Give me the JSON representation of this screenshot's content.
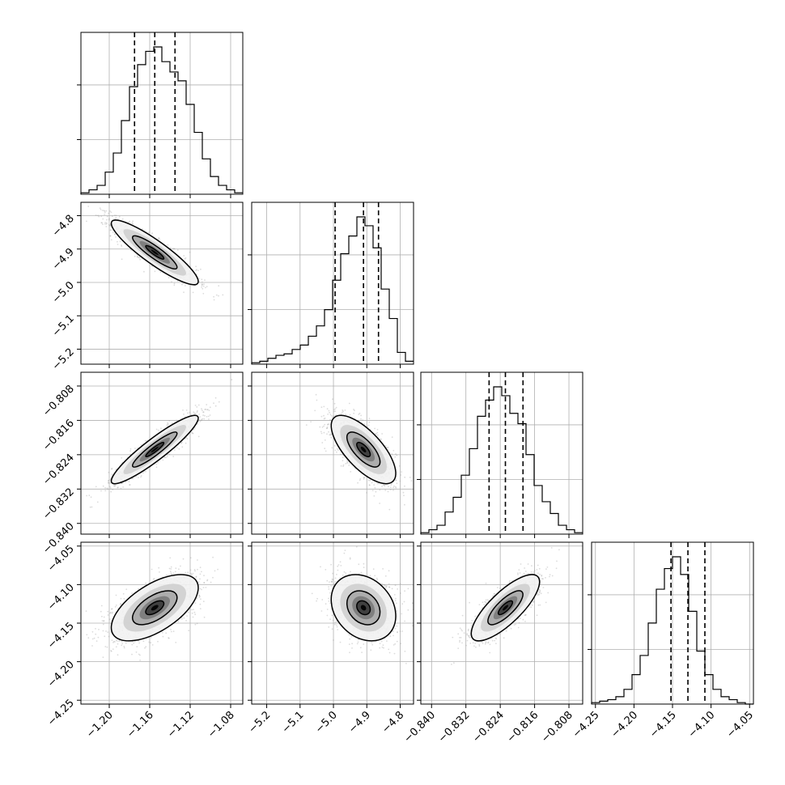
{
  "chart_data": {
    "type": "corner",
    "parameters": [
      {
        "name": "",
        "range": [
          -1.228,
          -1.068
        ],
        "ticks": [
          "−1.20",
          "−1.16",
          "−1.12",
          "−1.08"
        ],
        "tick_values": [
          -1.2,
          -1.16,
          -1.12,
          -1.08
        ],
        "mean": -1.155,
        "sigma": 0.02,
        "quantiles": [
          -1.175,
          -1.155,
          -1.135
        ]
      },
      {
        "name": "",
        "range": [
          -5.245,
          -4.76
        ],
        "ticks": [
          "−5.2",
          "−5.1",
          "−5.0",
          "−4.9",
          "−4.8"
        ],
        "tick_values": [
          -5.2,
          -5.1,
          -5.0,
          -4.9,
          -4.8
        ],
        "mean": -4.91,
        "sigma": 0.045,
        "quantiles": [
          -4.995,
          -4.91,
          -4.865
        ]
      },
      {
        "name": "",
        "range": [
          -0.8425,
          -0.8048
        ],
        "ticks": [
          "−0.840",
          "−0.832",
          "−0.824",
          "−0.816",
          "−0.808"
        ],
        "tick_values": [
          -0.84,
          -0.832,
          -0.824,
          -0.816,
          -0.808
        ],
        "mean": -0.8228,
        "sigma": 0.0037,
        "quantiles": [
          -0.8266,
          -0.8228,
          -0.8187
        ]
      },
      {
        "name": "",
        "range": [
          -4.255,
          -4.045
        ],
        "ticks": [
          "−4.25",
          "−4.20",
          "−4.15",
          "−4.10",
          "−4.05"
        ],
        "tick_values": [
          -4.25,
          -4.2,
          -4.15,
          -4.1,
          -4.05
        ],
        "mean": -4.13,
        "sigma": 0.02,
        "quantiles": [
          -4.152,
          -4.13,
          -4.108
        ]
      }
    ],
    "histograms": [
      {
        "param": 0,
        "counts": [
          1,
          3,
          6,
          15,
          28,
          50,
          73,
          88,
          97,
          100,
          90,
          83,
          77,
          61,
          42,
          24,
          12,
          6,
          3,
          1
        ]
      },
      {
        "param": 1,
        "counts": [
          1,
          2,
          4,
          6,
          7,
          10,
          13,
          19,
          26,
          37,
          57,
          75,
          87,
          100,
          94,
          79,
          51,
          31,
          8,
          2
        ]
      },
      {
        "param": 2,
        "counts": [
          1,
          3,
          6,
          15,
          25,
          40,
          58,
          80,
          91,
          100,
          94,
          82,
          75,
          54,
          33,
          22,
          14,
          6,
          3,
          1
        ]
      },
      {
        "param": 3,
        "counts": [
          1,
          2,
          3,
          5,
          10,
          20,
          33,
          55,
          78,
          92,
          100,
          88,
          63,
          36,
          20,
          10,
          5,
          3,
          1,
          0
        ]
      }
    ],
    "pairs": [
      {
        "x": 0,
        "y": 1,
        "rho": -0.9
      },
      {
        "x": 0,
        "y": 2,
        "rho": 0.92
      },
      {
        "x": 1,
        "y": 2,
        "rho": -0.7
      },
      {
        "x": 0,
        "y": 3,
        "rho": 0.6
      },
      {
        "x": 1,
        "y": 3,
        "rho": -0.25
      },
      {
        "x": 2,
        "y": 3,
        "rho": 0.78
      }
    ],
    "grid": true
  }
}
